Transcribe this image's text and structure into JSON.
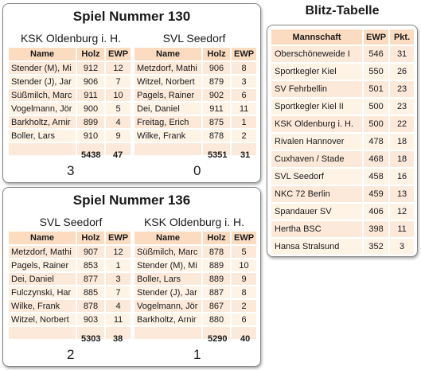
{
  "games": [
    {
      "title": "Spiel Nummer 130",
      "home": {
        "team": "KSK Oldenburg i. H.",
        "rows": [
          {
            "name": "Stender (M), Mi",
            "holz": "912",
            "ewp": "12"
          },
          {
            "name": "Stender (J), Jar",
            "holz": "906",
            "ewp": "7"
          },
          {
            "name": "Süßmilch, Marc",
            "holz": "911",
            "ewp": "10"
          },
          {
            "name": "Vogelmann, Jör",
            "holz": "900",
            "ewp": "5"
          },
          {
            "name": "Barkholtz, Arnir",
            "holz": "899",
            "ewp": "4"
          },
          {
            "name": "Boller, Lars",
            "holz": "910",
            "ewp": "9"
          }
        ],
        "total_holz": "5438",
        "total_ewp": "47",
        "score": "3"
      },
      "away": {
        "team": "SVL Seedorf",
        "rows": [
          {
            "name": "Metzdorf, Mathi",
            "holz": "906",
            "ewp": "8"
          },
          {
            "name": "Witzel, Norbert",
            "holz": "879",
            "ewp": "3"
          },
          {
            "name": "Pagels, Rainer",
            "holz": "902",
            "ewp": "6"
          },
          {
            "name": "Dei, Daniel",
            "holz": "911",
            "ewp": "11"
          },
          {
            "name": "Freitag, Erich",
            "holz": "875",
            "ewp": "1"
          },
          {
            "name": "Wilke, Frank",
            "holz": "878",
            "ewp": "2"
          }
        ],
        "total_holz": "5351",
        "total_ewp": "31",
        "score": "0"
      }
    },
    {
      "title": "Spiel Nummer 136",
      "home": {
        "team": "SVL Seedorf",
        "rows": [
          {
            "name": "Metzdorf, Mathi",
            "holz": "907",
            "ewp": "12"
          },
          {
            "name": "Pagels, Rainer",
            "holz": "853",
            "ewp": "1"
          },
          {
            "name": "Dei, Daniel",
            "holz": "877",
            "ewp": "3"
          },
          {
            "name": "Fulczynski, Har",
            "holz": "885",
            "ewp": "7"
          },
          {
            "name": "Wilke, Frank",
            "holz": "878",
            "ewp": "4"
          },
          {
            "name": "Witzel, Norbert",
            "holz": "903",
            "ewp": "11"
          }
        ],
        "total_holz": "5303",
        "total_ewp": "38",
        "score": "2"
      },
      "away": {
        "team": "KSK Oldenburg i. H.",
        "rows": [
          {
            "name": "Süßmilch, Marc",
            "holz": "878",
            "ewp": "5"
          },
          {
            "name": "Stender (M), Mi",
            "holz": "889",
            "ewp": "10"
          },
          {
            "name": "Boller, Lars",
            "holz": "889",
            "ewp": "9"
          },
          {
            "name": "Stender (J), Jar",
            "holz": "887",
            "ewp": "8"
          },
          {
            "name": "Vogelmann, Jör",
            "holz": "867",
            "ewp": "2"
          },
          {
            "name": "Barkholtz, Arnir",
            "holz": "880",
            "ewp": "6"
          }
        ],
        "total_holz": "5290",
        "total_ewp": "40",
        "score": "1"
      }
    }
  ],
  "headers": {
    "name": "Name",
    "holz": "Holz",
    "ewp": "EWP"
  },
  "standings": {
    "title": "Blitz-Tabelle",
    "headers": {
      "team": "Mannschaft",
      "ewp": "EWP",
      "pkt": "Pkt."
    },
    "rows": [
      {
        "team": "Oberschöneweide I",
        "ewp": "546",
        "pkt": "31"
      },
      {
        "team": "Sportkegler Kiel",
        "ewp": "550",
        "pkt": "26"
      },
      {
        "team": "SV Fehrbellin",
        "ewp": "501",
        "pkt": "23"
      },
      {
        "team": "Sportkegler Kiel II",
        "ewp": "500",
        "pkt": "23"
      },
      {
        "team": "KSK Oldenburg i. H.",
        "ewp": "500",
        "pkt": "22"
      },
      {
        "team": "Rivalen Hannover",
        "ewp": "478",
        "pkt": "18"
      },
      {
        "team": "Cuxhaven / Stade",
        "ewp": "468",
        "pkt": "18"
      },
      {
        "team": "SVL Seedorf",
        "ewp": "458",
        "pkt": "16"
      },
      {
        "team": "NKC 72 Berlin",
        "ewp": "459",
        "pkt": "13"
      },
      {
        "team": "Spandauer SV",
        "ewp": "406",
        "pkt": "12"
      },
      {
        "team": "Hertha BSC",
        "ewp": "398",
        "pkt": "11"
      },
      {
        "team": "Hansa Stralsund",
        "ewp": "352",
        "pkt": "3"
      }
    ]
  },
  "colors": {
    "header_bg": "#fcdcc0",
    "row_bg": "#fde9d9",
    "row_alt_bg": "#fff3e6"
  }
}
